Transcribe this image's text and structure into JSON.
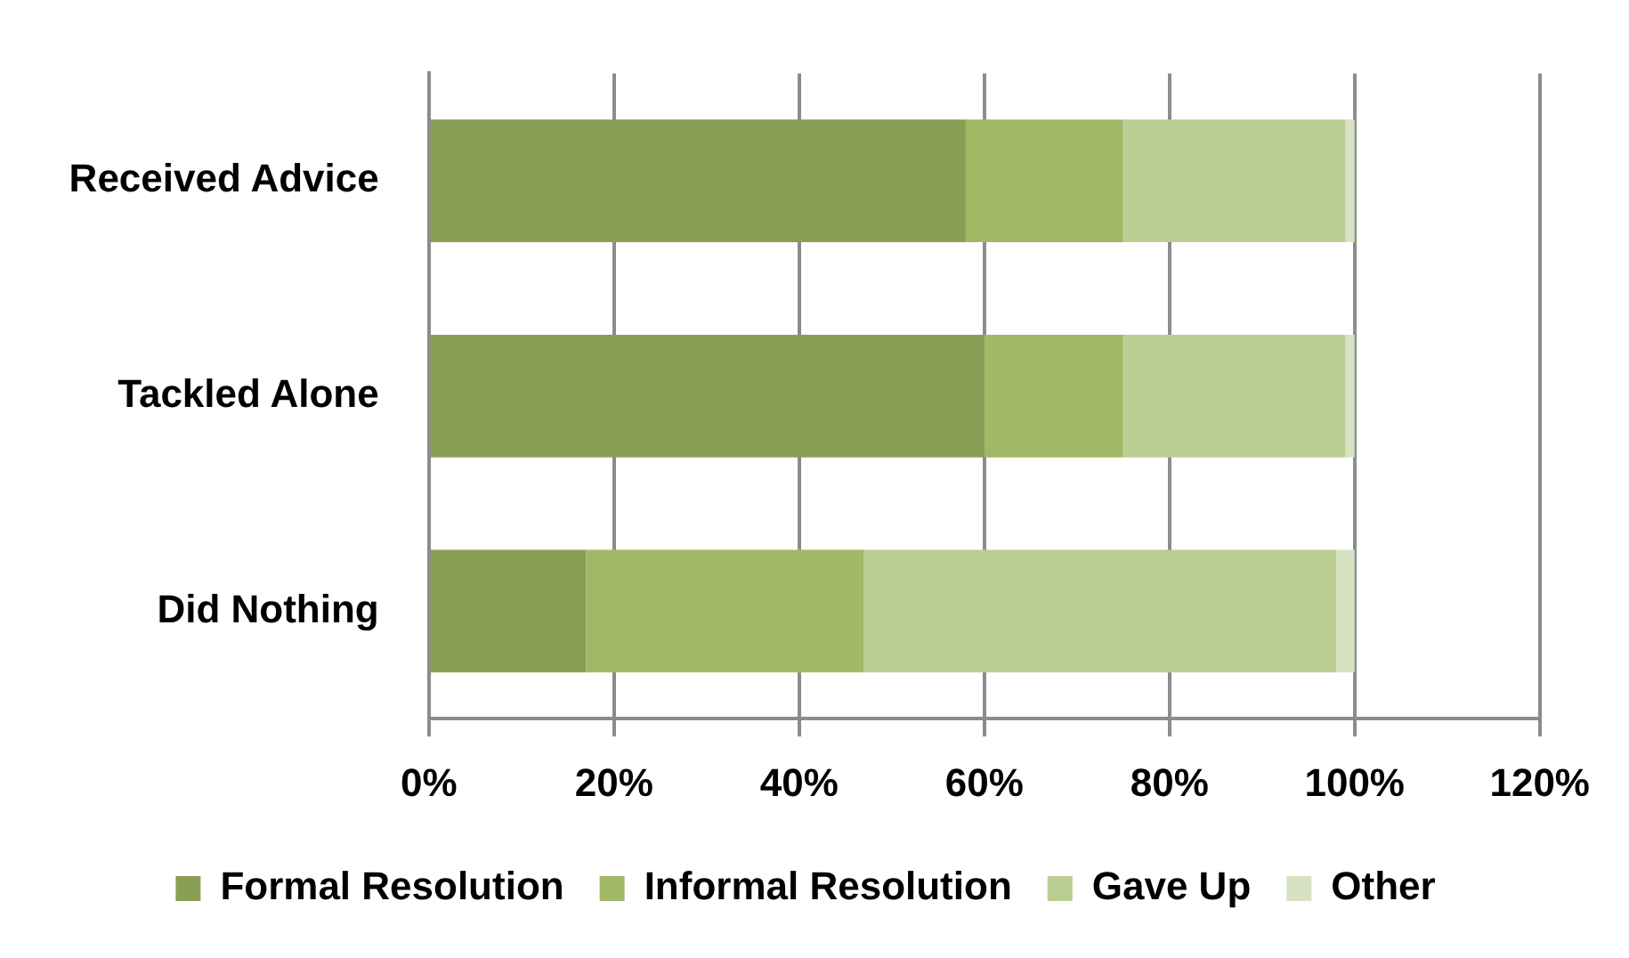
{
  "chart_data": {
    "type": "bar",
    "orientation": "horizontal",
    "stacked": true,
    "categories": [
      "Received Advice",
      "Tackled Alone",
      "Did Nothing"
    ],
    "series": [
      {
        "name": "Formal Resolution",
        "color": "#8a9f55",
        "values": [
          58,
          60,
          17
        ]
      },
      {
        "name": "Informal Resolution",
        "color": "#a1b967",
        "values": [
          17,
          15,
          30
        ]
      },
      {
        "name": "Gave Up",
        "color": "#bccd94",
        "values": [
          24,
          24,
          51
        ]
      },
      {
        "name": "Other",
        "color": "#d7e2c2",
        "values": [
          1,
          1,
          2
        ]
      }
    ],
    "xlim": [
      0,
      120
    ],
    "xticks": [
      {
        "value": 0,
        "label": "0%"
      },
      {
        "value": 20,
        "label": "20%"
      },
      {
        "value": 40,
        "label": "40%"
      },
      {
        "value": 60,
        "label": "60%"
      },
      {
        "value": 80,
        "label": "80%"
      },
      {
        "value": 100,
        "label": "100%"
      },
      {
        "value": 120,
        "label": "120%"
      }
    ],
    "grid": "x",
    "legend": "bottom"
  }
}
